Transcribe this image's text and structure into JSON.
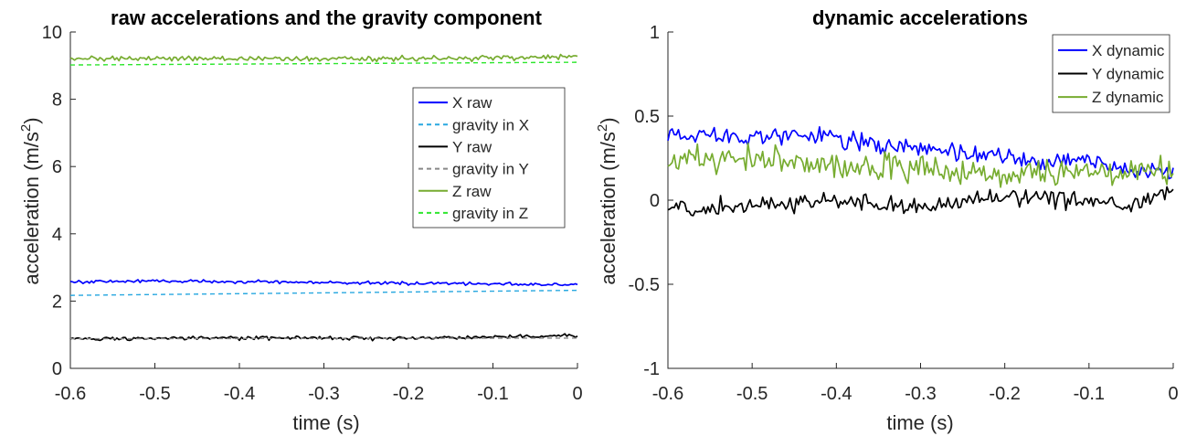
{
  "chart_data": [
    {
      "type": "line",
      "title": "raw accelerations and the gravity component",
      "xlabel": "time (s)",
      "ylabel_main": "acceleration (m/s",
      "ylabel_sup": "2",
      "ylabel_tail": ")",
      "xlim": [
        -0.6,
        0
      ],
      "ylim": [
        0,
        10
      ],
      "xticks": [
        -0.6,
        -0.5,
        -0.4,
        -0.3,
        -0.2,
        -0.1,
        0
      ],
      "xtick_labels": [
        "-0.6",
        "-0.5",
        "-0.4",
        "-0.3",
        "-0.2",
        "-0.1",
        "0"
      ],
      "yticks": [
        0,
        2,
        4,
        6,
        8,
        10
      ],
      "ytick_labels": [
        "0",
        "2",
        "4",
        "6",
        "8",
        "10"
      ],
      "legend_position": "upper-right",
      "series": [
        {
          "name": "X raw",
          "color": "#0000ff",
          "dash": "solid",
          "trend": [
            [
              -0.6,
              2.57
            ],
            [
              -0.5,
              2.6
            ],
            [
              -0.4,
              2.58
            ],
            [
              -0.3,
              2.55
            ],
            [
              -0.2,
              2.53
            ],
            [
              -0.1,
              2.52
            ],
            [
              0,
              2.47
            ]
          ],
          "noise": 0.045
        },
        {
          "name": "gravity in X",
          "color": "#29a8e0",
          "dash": "dashed",
          "trend": [
            [
              -0.6,
              2.17
            ],
            [
              0,
              2.32
            ]
          ],
          "noise": 0
        },
        {
          "name": "Y raw",
          "color": "#000000",
          "dash": "solid",
          "trend": [
            [
              -0.6,
              0.88
            ],
            [
              -0.4,
              0.9
            ],
            [
              -0.2,
              0.9
            ],
            [
              0,
              0.97
            ]
          ],
          "noise": 0.05
        },
        {
          "name": "gravity in Y",
          "color": "#888888",
          "dash": "dashed",
          "trend": [
            [
              -0.6,
              0.88
            ],
            [
              0,
              0.9
            ]
          ],
          "noise": 0
        },
        {
          "name": "Z raw",
          "color": "#77ac30",
          "dash": "solid",
          "trend": [
            [
              -0.6,
              9.22
            ],
            [
              -0.4,
              9.2
            ],
            [
              -0.2,
              9.2
            ],
            [
              0,
              9.27
            ]
          ],
          "noise": 0.07
        },
        {
          "name": "gravity in Z",
          "color": "#2ee62e",
          "dash": "dashed",
          "trend": [
            [
              -0.6,
              9.02
            ],
            [
              0,
              9.1
            ]
          ],
          "noise": 0
        }
      ]
    },
    {
      "type": "line",
      "title": "dynamic accelerations",
      "xlabel": "time (s)",
      "ylabel_main": "acceleration (m/s",
      "ylabel_sup": "2",
      "ylabel_tail": ")",
      "xlim": [
        -0.6,
        0
      ],
      "ylim": [
        -1,
        1
      ],
      "xticks": [
        -0.6,
        -0.5,
        -0.4,
        -0.3,
        -0.2,
        -0.1,
        0
      ],
      "xtick_labels": [
        "-0.6",
        "-0.5",
        "-0.4",
        "-0.3",
        "-0.2",
        "-0.1",
        "0"
      ],
      "yticks": [
        -1,
        -0.5,
        0,
        0.5,
        1
      ],
      "ytick_labels": [
        "-1",
        "-0.5",
        "0",
        "0.5",
        "1"
      ],
      "legend_position": "upper-right",
      "series": [
        {
          "name": "X dynamic",
          "color": "#0000ff",
          "dash": "solid",
          "trend": [
            [
              -0.6,
              0.4
            ],
            [
              -0.5,
              0.38
            ],
            [
              -0.4,
              0.38
            ],
            [
              -0.35,
              0.32
            ],
            [
              -0.3,
              0.3
            ],
            [
              -0.25,
              0.28
            ],
            [
              -0.2,
              0.25
            ],
            [
              -0.15,
              0.22
            ],
            [
              -0.1,
              0.24
            ],
            [
              -0.05,
              0.18
            ],
            [
              0,
              0.17
            ]
          ],
          "noise": 0.05
        },
        {
          "name": "Y dynamic",
          "color": "#000000",
          "dash": "solid",
          "trend": [
            [
              -0.6,
              -0.05
            ],
            [
              -0.5,
              -0.03
            ],
            [
              -0.4,
              0.0
            ],
            [
              -0.3,
              -0.05
            ],
            [
              -0.2,
              0.02
            ],
            [
              -0.1,
              0.0
            ],
            [
              -0.05,
              -0.04
            ],
            [
              0,
              0.06
            ]
          ],
          "noise": 0.045
        },
        {
          "name": "Z dynamic",
          "color": "#77ac30",
          "dash": "solid",
          "trend": [
            [
              -0.6,
              0.24
            ],
            [
              -0.5,
              0.24
            ],
            [
              -0.4,
              0.2
            ],
            [
              -0.3,
              0.18
            ],
            [
              -0.2,
              0.16
            ],
            [
              -0.1,
              0.15
            ],
            [
              0,
              0.18
            ]
          ],
          "noise": 0.08
        }
      ]
    }
  ]
}
